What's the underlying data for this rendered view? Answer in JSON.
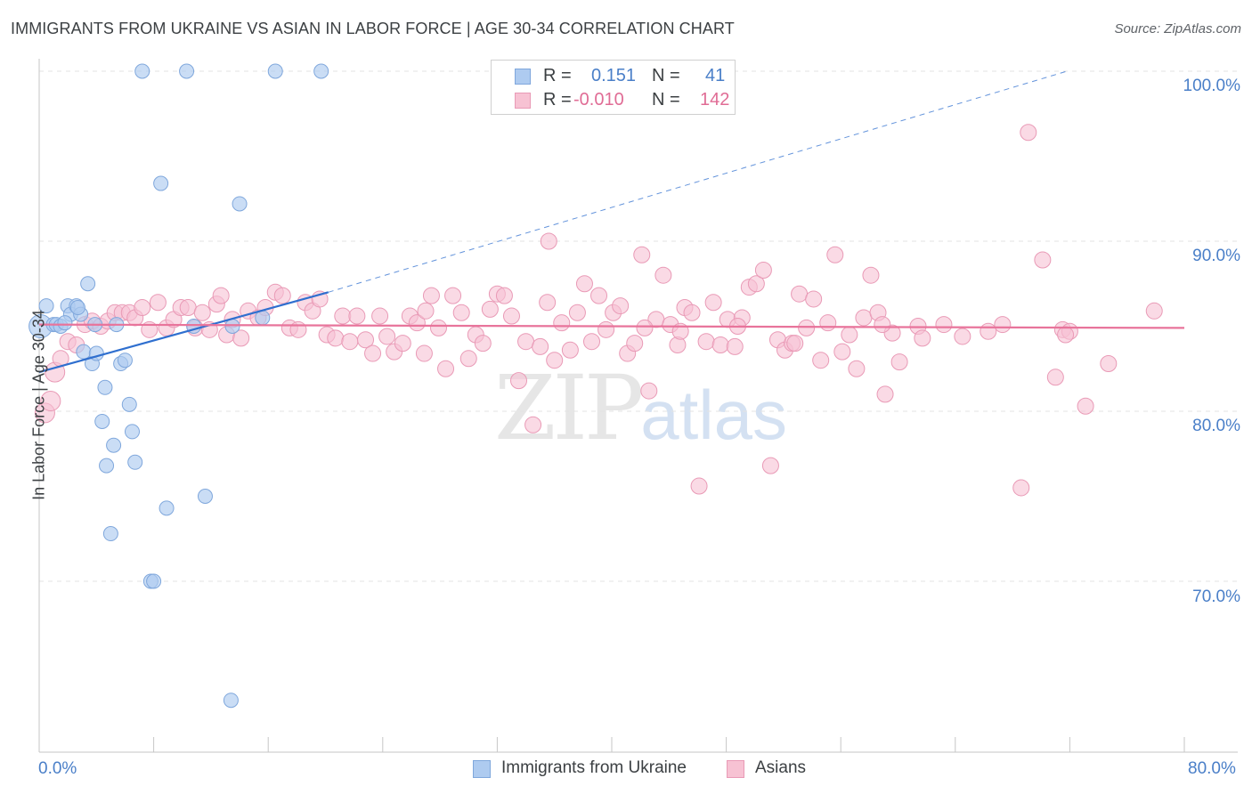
{
  "header": {
    "title": "IMMIGRANTS FROM UKRAINE VS ASIAN IN LABOR FORCE | AGE 30-34 CORRELATION CHART",
    "source": "Source: ZipAtlas.com"
  },
  "watermark": {
    "zip": "ZIP",
    "atlas": "atlas"
  },
  "legend": {
    "r_label": "R =",
    "n_label": "N =",
    "rows": [
      {
        "r_value": "0.151",
        "n_value": "41",
        "color": "#aecbf0",
        "stroke": "#7fa7dc"
      },
      {
        "r_value": "-0.010",
        "n_value": "142",
        "color": "#f7c2d3",
        "stroke": "#e99ab6"
      }
    ]
  },
  "bottom_legend": {
    "series1": "Immigrants from Ukraine",
    "series2": "Asians"
  },
  "axes": {
    "ylabel": "In Labor Force | Age 30-34",
    "yticks": [
      "100.0%",
      "90.0%",
      "80.0%",
      "70.0%"
    ],
    "xtick_left": "0.0%",
    "xtick_right": "80.0%"
  },
  "colors": {
    "blue_fill": "#aecbf0",
    "blue_stroke": "#7fa7dc",
    "blue_line": "#2f6fcf",
    "pink_fill": "#f7c2d3",
    "pink_stroke": "#e99ab6",
    "pink_line": "#e8749b",
    "grid": "#e3e3e3",
    "axis": "#c6c6c6",
    "tick_text": "#4a7fc8"
  },
  "chart_data": {
    "type": "scatter",
    "title": "IMMIGRANTS FROM UKRAINE VS ASIAN IN LABOR FORCE | AGE 30-34 CORRELATION CHART",
    "xlabel": "",
    "ylabel": "In Labor Force | Age 30-34",
    "xlim": [
      0,
      80
    ],
    "ylim": [
      61.5,
      102.5
    ],
    "grid": true,
    "legend_position": "top-center",
    "series": [
      {
        "name": "Immigrants from Ukraine",
        "r": 0.151,
        "n": 41,
        "trend": {
          "x": [
            0,
            20.2
          ],
          "y": [
            82.3,
            87.0
          ],
          "dashed_extension_to": [
            71.8,
            100.0
          ]
        },
        "points": [
          [
            0.1,
            85.0
          ],
          [
            0.5,
            86.2
          ],
          [
            1.0,
            85.1
          ],
          [
            1.2,
            85.1
          ],
          [
            1.5,
            85.0
          ],
          [
            2.0,
            86.2
          ],
          [
            2.2,
            85.7
          ],
          [
            2.6,
            86.2
          ],
          [
            2.9,
            85.7
          ],
          [
            3.1,
            83.5
          ],
          [
            3.4,
            87.5
          ],
          [
            3.7,
            82.8
          ],
          [
            3.9,
            85.1
          ],
          [
            4.0,
            83.4
          ],
          [
            4.4,
            79.4
          ],
          [
            4.6,
            81.4
          ],
          [
            4.7,
            76.8
          ],
          [
            5.0,
            72.8
          ],
          [
            5.2,
            78.0
          ],
          [
            5.4,
            85.1
          ],
          [
            5.7,
            82.8
          ],
          [
            6.0,
            83.0
          ],
          [
            6.3,
            80.4
          ],
          [
            6.5,
            78.8
          ],
          [
            6.7,
            77.0
          ],
          [
            7.2,
            100.0
          ],
          [
            8.5,
            93.4
          ],
          [
            8.9,
            74.3
          ],
          [
            7.8,
            70.0
          ],
          [
            8.0,
            70.0
          ],
          [
            10.3,
            100.0
          ],
          [
            10.8,
            85.0
          ],
          [
            11.6,
            75.0
          ],
          [
            13.4,
            63.0
          ],
          [
            13.5,
            85.0
          ],
          [
            14.0,
            92.2
          ],
          [
            15.6,
            85.5
          ],
          [
            16.5,
            100.0
          ],
          [
            19.7,
            100.0
          ],
          [
            2.7,
            86.1
          ],
          [
            1.8,
            85.2
          ]
        ]
      },
      {
        "name": "Asians",
        "r": -0.01,
        "n": 142,
        "trend": {
          "x": [
            0,
            80
          ],
          "y": [
            85.1,
            84.9
          ]
        },
        "points": [
          [
            0.4,
            79.9
          ],
          [
            0.8,
            80.6
          ],
          [
            1.1,
            82.3
          ],
          [
            1.5,
            83.1
          ],
          [
            2.0,
            84.1
          ],
          [
            2.6,
            83.9
          ],
          [
            3.2,
            85.1
          ],
          [
            3.7,
            85.3
          ],
          [
            4.3,
            85.0
          ],
          [
            4.8,
            85.3
          ],
          [
            5.3,
            85.8
          ],
          [
            5.8,
            85.8
          ],
          [
            6.3,
            85.8
          ],
          [
            6.7,
            85.5
          ],
          [
            7.2,
            86.1
          ],
          [
            7.7,
            84.8
          ],
          [
            8.3,
            86.4
          ],
          [
            8.9,
            84.9
          ],
          [
            9.4,
            85.4
          ],
          [
            9.9,
            86.1
          ],
          [
            10.4,
            86.1
          ],
          [
            10.9,
            84.9
          ],
          [
            11.4,
            85.8
          ],
          [
            11.9,
            84.8
          ],
          [
            12.4,
            86.3
          ],
          [
            12.7,
            86.8
          ],
          [
            13.1,
            84.5
          ],
          [
            13.5,
            85.4
          ],
          [
            14.1,
            84.3
          ],
          [
            14.6,
            85.9
          ],
          [
            15.3,
            85.5
          ],
          [
            15.8,
            86.1
          ],
          [
            16.5,
            87.0
          ],
          [
            17.0,
            86.8
          ],
          [
            17.5,
            84.9
          ],
          [
            18.1,
            84.8
          ],
          [
            18.6,
            86.4
          ],
          [
            19.1,
            85.9
          ],
          [
            19.6,
            86.6
          ],
          [
            20.1,
            84.5
          ],
          [
            20.7,
            84.3
          ],
          [
            21.2,
            85.6
          ],
          [
            21.7,
            84.1
          ],
          [
            22.2,
            85.6
          ],
          [
            22.8,
            84.2
          ],
          [
            23.3,
            83.4
          ],
          [
            23.8,
            85.6
          ],
          [
            24.3,
            84.4
          ],
          [
            24.8,
            83.5
          ],
          [
            25.4,
            84.0
          ],
          [
            25.9,
            85.6
          ],
          [
            26.4,
            85.2
          ],
          [
            26.9,
            83.4
          ],
          [
            27.4,
            86.8
          ],
          [
            27.9,
            84.9
          ],
          [
            28.4,
            82.5
          ],
          [
            28.9,
            86.8
          ],
          [
            29.5,
            85.8
          ],
          [
            30.0,
            83.1
          ],
          [
            30.5,
            84.5
          ],
          [
            31.0,
            84.0
          ],
          [
            31.5,
            86.0
          ],
          [
            32.0,
            86.9
          ],
          [
            32.5,
            86.8
          ],
          [
            33.0,
            85.6
          ],
          [
            33.5,
            81.8
          ],
          [
            34.0,
            84.1
          ],
          [
            34.5,
            79.2
          ],
          [
            35.0,
            83.8
          ],
          [
            35.5,
            86.4
          ],
          [
            36.0,
            83.0
          ],
          [
            36.5,
            85.2
          ],
          [
            37.1,
            83.6
          ],
          [
            37.6,
            85.8
          ],
          [
            38.1,
            87.5
          ],
          [
            38.6,
            84.1
          ],
          [
            39.1,
            86.8
          ],
          [
            39.6,
            84.8
          ],
          [
            40.1,
            85.8
          ],
          [
            40.6,
            86.2
          ],
          [
            41.1,
            83.4
          ],
          [
            41.6,
            84.0
          ],
          [
            42.1,
            89.2
          ],
          [
            42.6,
            81.2
          ],
          [
            43.1,
            85.4
          ],
          [
            43.6,
            88.0
          ],
          [
            44.1,
            85.1
          ],
          [
            44.6,
            83.9
          ],
          [
            45.1,
            86.1
          ],
          [
            45.6,
            85.8
          ],
          [
            46.1,
            75.6
          ],
          [
            46.6,
            84.1
          ],
          [
            47.1,
            86.4
          ],
          [
            47.6,
            83.9
          ],
          [
            48.1,
            85.4
          ],
          [
            48.6,
            83.8
          ],
          [
            49.1,
            85.5
          ],
          [
            49.6,
            87.3
          ],
          [
            50.1,
            87.5
          ],
          [
            50.6,
            88.3
          ],
          [
            51.1,
            76.8
          ],
          [
            51.6,
            84.2
          ],
          [
            52.1,
            83.6
          ],
          [
            52.6,
            84.0
          ],
          [
            53.1,
            86.9
          ],
          [
            53.6,
            84.9
          ],
          [
            54.1,
            86.6
          ],
          [
            54.6,
            83.0
          ],
          [
            55.1,
            85.2
          ],
          [
            55.6,
            89.2
          ],
          [
            56.1,
            83.5
          ],
          [
            56.6,
            84.5
          ],
          [
            57.1,
            82.5
          ],
          [
            57.6,
            85.5
          ],
          [
            58.1,
            88.0
          ],
          [
            58.6,
            85.8
          ],
          [
            59.1,
            81.0
          ],
          [
            59.6,
            84.6
          ],
          [
            60.1,
            82.9
          ],
          [
            68.6,
            75.5
          ],
          [
            69.1,
            96.4
          ],
          [
            71.0,
            82.0
          ],
          [
            71.5,
            84.8
          ],
          [
            72.0,
            84.7
          ],
          [
            73.1,
            80.3
          ],
          [
            74.7,
            82.8
          ],
          [
            77.9,
            85.9
          ],
          [
            42.3,
            84.9
          ],
          [
            44.8,
            84.7
          ],
          [
            48.8,
            85.0
          ],
          [
            52.8,
            84.0
          ],
          [
            35.6,
            90.0
          ],
          [
            70.1,
            88.9
          ],
          [
            63.2,
            85.1
          ],
          [
            27.0,
            85.9
          ],
          [
            61.4,
            85.0
          ],
          [
            58.9,
            85.1
          ],
          [
            66.3,
            84.7
          ],
          [
            71.7,
            84.5
          ],
          [
            61.7,
            84.3
          ],
          [
            64.5,
            84.4
          ],
          [
            67.3,
            85.1
          ]
        ]
      }
    ]
  }
}
